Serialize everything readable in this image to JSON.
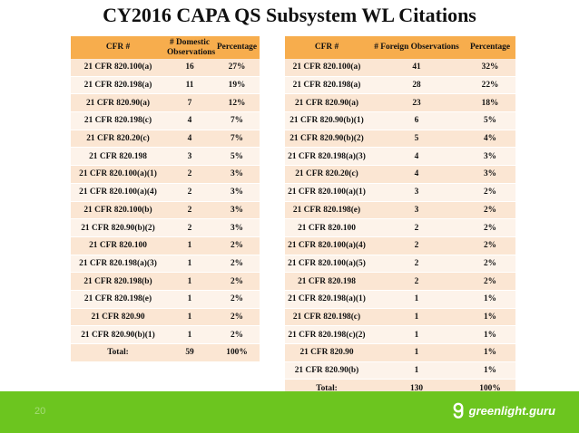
{
  "title": "CY2016 CAPA QS Subsystem WL Citations",
  "domestic": {
    "headers": [
      "CFR #",
      "# Domestic Observations",
      "Percentage"
    ],
    "rows": [
      [
        "21 CFR 820.100(a)",
        "16",
        "27%"
      ],
      [
        "21 CFR 820.198(a)",
        "11",
        "19%"
      ],
      [
        "21 CFR 820.90(a)",
        "7",
        "12%"
      ],
      [
        "21 CFR 820.198(c)",
        "4",
        "7%"
      ],
      [
        "21 CFR 820.20(c)",
        "4",
        "7%"
      ],
      [
        "21 CFR 820.198",
        "3",
        "5%"
      ],
      [
        "21 CFR 820.100(a)(1)",
        "2",
        "3%"
      ],
      [
        "21 CFR 820.100(a)(4)",
        "2",
        "3%"
      ],
      [
        "21 CFR 820.100(b)",
        "2",
        "3%"
      ],
      [
        "21 CFR 820.90(b)(2)",
        "2",
        "3%"
      ],
      [
        "21 CFR 820.100",
        "1",
        "2%"
      ],
      [
        "21 CFR 820.198(a)(3)",
        "1",
        "2%"
      ],
      [
        "21 CFR 820.198(b)",
        "1",
        "2%"
      ],
      [
        "21 CFR 820.198(e)",
        "1",
        "2%"
      ],
      [
        "21 CFR 820.90",
        "1",
        "2%"
      ],
      [
        "21 CFR 820.90(b)(1)",
        "1",
        "2%"
      ]
    ],
    "total": [
      "Total:",
      "59",
      "100%"
    ]
  },
  "foreign": {
    "headers": [
      "CFR #",
      "# Foreign Observations",
      "Percentage"
    ],
    "rows": [
      [
        "21 CFR 820.100(a)",
        "41",
        "32%"
      ],
      [
        "21 CFR 820.198(a)",
        "28",
        "22%"
      ],
      [
        "21 CFR 820.90(a)",
        "23",
        "18%"
      ],
      [
        "21 CFR 820.90(b)(1)",
        "6",
        "5%"
      ],
      [
        "21 CFR 820.90(b)(2)",
        "5",
        "4%"
      ],
      [
        "21 CFR 820.198(a)(3)",
        "4",
        "3%"
      ],
      [
        "21 CFR 820.20(c)",
        "4",
        "3%"
      ],
      [
        "21 CFR 820.100(a)(1)",
        "3",
        "2%"
      ],
      [
        "21 CFR 820.198(e)",
        "3",
        "2%"
      ],
      [
        "21 CFR 820.100",
        "2",
        "2%"
      ],
      [
        "21 CFR 820.100(a)(4)",
        "2",
        "2%"
      ],
      [
        "21 CFR 820.100(a)(5)",
        "2",
        "2%"
      ],
      [
        "21 CFR 820.198",
        "2",
        "2%"
      ],
      [
        "21 CFR 820.198(a)(1)",
        "1",
        "1%"
      ],
      [
        "21 CFR 820.198(c)",
        "1",
        "1%"
      ],
      [
        "21 CFR 820.198(c)(2)",
        "1",
        "1%"
      ],
      [
        "21 CFR 820.90",
        "1",
        "1%"
      ],
      [
        "21 CFR 820.90(b)",
        "1",
        "1%"
      ]
    ],
    "total": [
      "Total:",
      "130",
      "100%"
    ]
  },
  "footer": {
    "page_number": "20",
    "brand_name": "greenlight.guru",
    "brand_icon": "greenlight-logo-icon",
    "bg_color": "#6cc51f"
  },
  "colors": {
    "header_bg": "#f7ad4d",
    "row_odd": "#fbe6d3",
    "row_even": "#fdf3ea"
  }
}
